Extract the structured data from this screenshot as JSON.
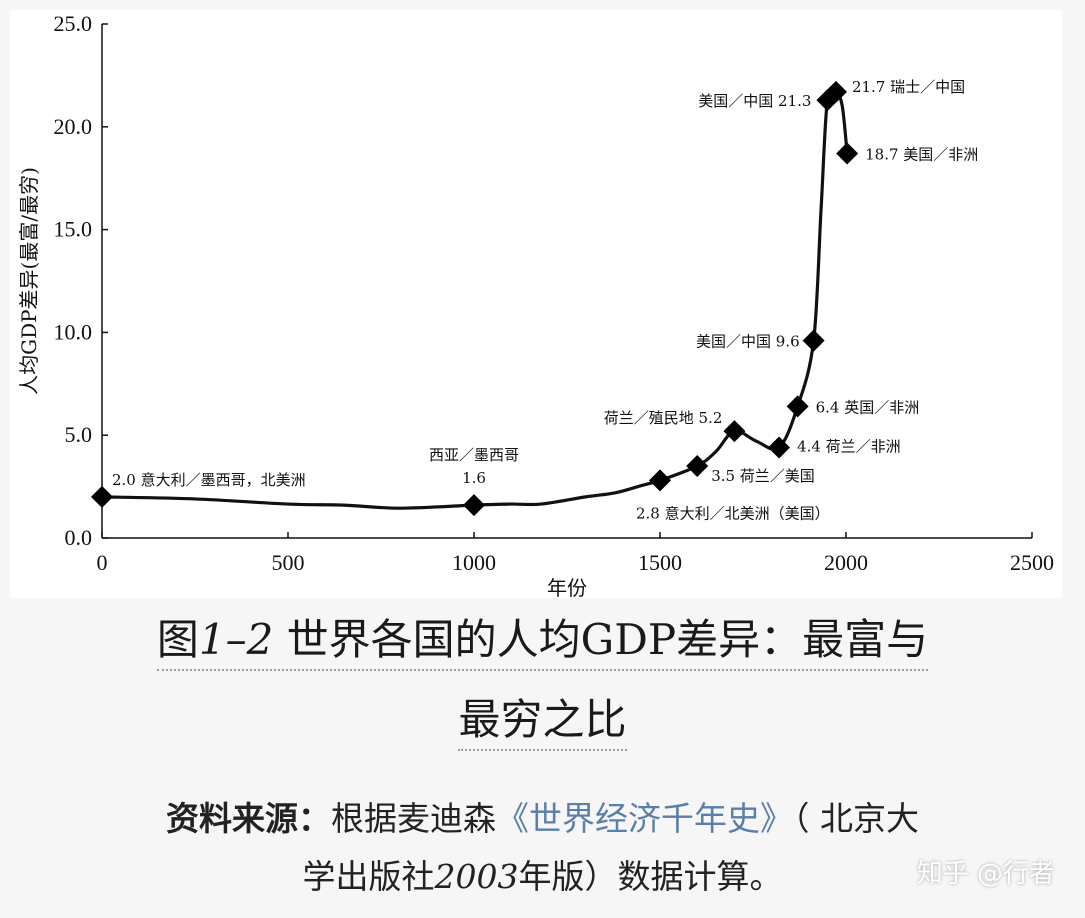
{
  "chart_data": {
    "type": "line",
    "xlabel": "年份",
    "ylabel": "人均GDP差异(最富/最穷)",
    "xlim": [
      0,
      2500
    ],
    "ylim": [
      0,
      25
    ],
    "xticks": [
      "0",
      "500",
      "1000",
      "1500",
      "2000",
      "2500"
    ],
    "yticks": [
      "0.0",
      "5.0",
      "10.0",
      "15.0",
      "20.0",
      "25.0"
    ],
    "curve": {
      "x": [
        0,
        250,
        500,
        650,
        800,
        1000,
        1100,
        1180,
        1300,
        1380,
        1450,
        1500,
        1600,
        1650,
        1700,
        1760,
        1820,
        1870,
        1913,
        1933,
        1950,
        1973,
        1990,
        2003
      ],
      "y": [
        2.0,
        1.9,
        1.65,
        1.6,
        1.45,
        1.6,
        1.65,
        1.65,
        2.0,
        2.2,
        2.55,
        2.8,
        3.5,
        4.2,
        5.2,
        4.7,
        4.4,
        6.4,
        9.6,
        16.0,
        21.3,
        21.7,
        21.0,
        18.7
      ]
    },
    "points": [
      {
        "x": 0,
        "y": 2.0,
        "label": "2.0 意大利／墨西哥，北美洲"
      },
      {
        "x": 1000,
        "y": 1.6,
        "label": "西亚／墨西哥"
      },
      {
        "x": 1500,
        "y": 2.8,
        "label": "2.8  意大利／北美洲（美国）"
      },
      {
        "x": 1600,
        "y": 3.5,
        "label": "3.5 荷兰／美国"
      },
      {
        "x": 1700,
        "y": 5.2,
        "label": "荷兰／殖民地 5.2"
      },
      {
        "x": 1820,
        "y": 4.4,
        "label": "4.4 荷兰／非洲"
      },
      {
        "x": 1870,
        "y": 6.4,
        "label": "6.4 英国／非洲"
      },
      {
        "x": 1913,
        "y": 9.6,
        "label": "美国／中国 9.6"
      },
      {
        "x": 1950,
        "y": 21.3,
        "label": "美国／中国  21.3"
      },
      {
        "x": 1973,
        "y": 21.7,
        "label": "21.7 瑞士／中国"
      },
      {
        "x": 2003,
        "y": 18.7,
        "label": "18.7 美国／非洲"
      }
    ],
    "extra_labels": [
      "1.6"
    ],
    "grid": false
  },
  "caption": {
    "line1_prefix": "图",
    "line1_num": "1–2",
    "line1_text": " 世界各国的人均GDP差异：最富与",
    "line2": "最穷之比"
  },
  "source": {
    "key": "资料来源：",
    "lead": "根据麦迪森",
    "book": "《世界经济千年史》",
    "after_book": "（ 北京大",
    "line2_pre": "学出版社",
    "year": "2003",
    "line2_post": "年版）数据计算。"
  },
  "watermark": "知乎 @行者"
}
